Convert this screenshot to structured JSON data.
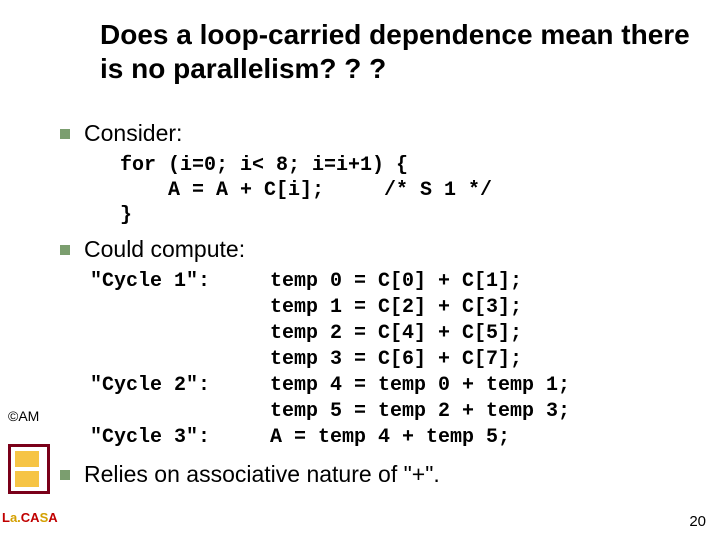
{
  "title": "Does a loop-carried dependence mean there is no parallelism? ? ?",
  "bullets": {
    "b1": "Consider:",
    "b2": "Could compute:",
    "b3": "Relies on associative nature of \"+\"."
  },
  "code1": "for (i=0; i< 8; i=i+1) {\n    A = A + C[i];     /* S 1 */\n}",
  "cycles": {
    "labels": "\"Cycle 1\":\n\n\n\n\"Cycle 2\":\n\n\"Cycle 3\":",
    "code": "temp 0 = C[0] + C[1];\ntemp 1 = C[2] + C[3];\ntemp 2 = C[4] + C[5];\ntemp 3 = C[6] + C[7];\ntemp 4 = temp 0 + temp 1;\ntemp 5 = temp 2 + temp 3;\nA = temp 4 + temp 5;"
  },
  "left": {
    "am": "©AM",
    "lacasa_l": "L",
    "lacasa_a1": "a.",
    "lacasa_c": "CA",
    "lacasa_s": "S",
    "lacasa_a2": "A"
  },
  "pagenum": "20",
  "colors": {
    "bullet": "#7b9e6f",
    "title": "#000000",
    "text": "#000000",
    "bg": "#ffffff"
  }
}
